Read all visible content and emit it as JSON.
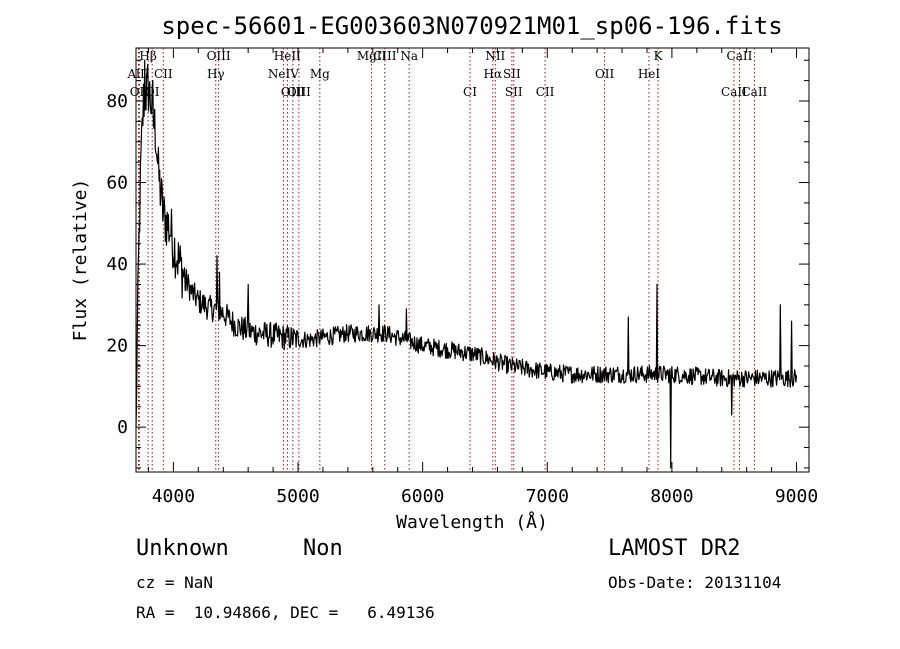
{
  "chart_data": {
    "type": "line",
    "title": "spec-56601-EG003603N070921M01_sp06-196.fits",
    "xlabel": "Wavelength (Å)",
    "ylabel": "Flux (relative)",
    "xlim": [
      3700,
      9100
    ],
    "ylim": [
      -11,
      93
    ],
    "xticks": [
      4000,
      5000,
      6000,
      7000,
      8000,
      9000
    ],
    "yticks": [
      0,
      20,
      40,
      60,
      80
    ],
    "x_tick_labels": [
      "4000",
      "5000",
      "6000",
      "7000",
      "8000",
      "9000"
    ],
    "y_tick_labels": [
      "0",
      "20",
      "40",
      "60",
      "80"
    ],
    "line_color": "#000000",
    "marker_color": "#8b1a1a",
    "spectrum_anchors": [
      [
        3700,
        0
      ],
      [
        3720,
        40
      ],
      [
        3740,
        65
      ],
      [
        3760,
        80
      ],
      [
        3780,
        82
      ],
      [
        3800,
        83
      ],
      [
        3820,
        80
      ],
      [
        3840,
        75
      ],
      [
        3860,
        72
      ],
      [
        3880,
        62
      ],
      [
        3900,
        57
      ],
      [
        3920,
        52
      ],
      [
        3950,
        50
      ],
      [
        3980,
        48
      ],
      [
        4000,
        45
      ],
      [
        4050,
        40
      ],
      [
        4100,
        36
      ],
      [
        4150,
        33
      ],
      [
        4200,
        31
      ],
      [
        4250,
        30
      ],
      [
        4300,
        29
      ],
      [
        4340,
        29
      ],
      [
        4400,
        28
      ],
      [
        4500,
        25
      ],
      [
        4600,
        23.5
      ],
      [
        4700,
        23
      ],
      [
        4800,
        22.5
      ],
      [
        4900,
        22
      ],
      [
        5000,
        21.5
      ],
      [
        5100,
        21.5
      ],
      [
        5200,
        22
      ],
      [
        5300,
        22.5
      ],
      [
        5400,
        23
      ],
      [
        5500,
        23
      ],
      [
        5600,
        23
      ],
      [
        5700,
        23
      ],
      [
        5800,
        22
      ],
      [
        5900,
        21
      ],
      [
        6000,
        20
      ],
      [
        6100,
        19.5
      ],
      [
        6200,
        19
      ],
      [
        6300,
        18.5
      ],
      [
        6400,
        18
      ],
      [
        6500,
        17
      ],
      [
        6600,
        16
      ],
      [
        6700,
        15
      ],
      [
        6800,
        14.5
      ],
      [
        6900,
        14
      ],
      [
        7000,
        13.5
      ],
      [
        7200,
        13
      ],
      [
        7400,
        13
      ],
      [
        7600,
        13
      ],
      [
        7800,
        13
      ],
      [
        8000,
        13
      ],
      [
        8200,
        12.5
      ],
      [
        8400,
        12
      ],
      [
        8600,
        12
      ],
      [
        8800,
        12
      ],
      [
        9000,
        12
      ]
    ],
    "spikes": [
      {
        "x": 3770,
        "y": 90
      },
      {
        "x": 3795,
        "y": 89
      },
      {
        "x": 3835,
        "y": 86
      },
      {
        "x": 3835,
        "y": 85
      },
      {
        "x": 4350,
        "y": 42
      },
      {
        "x": 4370,
        "y": 38
      },
      {
        "x": 5870,
        "y": 29
      },
      {
        "x": 7650,
        "y": 27
      },
      {
        "x": 7880,
        "y": 35
      },
      {
        "x": 7990,
        "y": -10
      },
      {
        "x": 8480,
        "y": 3
      },
      {
        "x": 8870,
        "y": 30
      },
      {
        "x": 8960,
        "y": 26
      },
      {
        "x": 4600,
        "y": 35
      },
      {
        "x": 5650,
        "y": 30
      }
    ],
    "lines": [
      {
        "name": "AlII",
        "x": 3720,
        "row": 2
      },
      {
        "name": "Hβ",
        "x": 3797,
        "row": 0
      },
      {
        "name": "OII",
        "x": 3727,
        "row": 3
      },
      {
        "name": "OI",
        "x": 3830,
        "row": 3
      },
      {
        "name": "CII",
        "x": 3919,
        "row": 2
      },
      {
        "name": "OIII",
        "x": 4363,
        "row": 0
      },
      {
        "name": "Hγ",
        "x": 4340,
        "row": 2
      },
      {
        "name": "HeII",
        "x": 4914,
        "row": 0
      },
      {
        "name": "NeIV",
        "x": 4883,
        "row": 2
      },
      {
        "name": "OIII",
        "x": 5007,
        "row": 3
      },
      {
        "name": "OIII",
        "x": 4959,
        "row": 3
      },
      {
        "name": "Mg",
        "x": 5175,
        "row": 2
      },
      {
        "name": "MgII",
        "x": 5590,
        "row": 0
      },
      {
        "name": "CIII",
        "x": 5696,
        "row": 0
      },
      {
        "name": "Na",
        "x": 5892,
        "row": 0
      },
      {
        "name": "CI",
        "x": 6380,
        "row": 3
      },
      {
        "name": "NII",
        "x": 6583,
        "row": 0
      },
      {
        "name": "Hα",
        "x": 6563,
        "row": 2
      },
      {
        "name": "SII",
        "x": 6716,
        "row": 2
      },
      {
        "name": "SII",
        "x": 6731,
        "row": 3
      },
      {
        "name": "CII",
        "x": 6982,
        "row": 3
      },
      {
        "name": "OII",
        "x": 7460,
        "row": 2
      },
      {
        "name": "K",
        "x": 7889,
        "row": 0
      },
      {
        "name": "HeI",
        "x": 7816,
        "row": 2
      },
      {
        "name": "CaII",
        "x": 8542,
        "row": 0
      },
      {
        "name": "CaII",
        "x": 8498,
        "row": 3
      },
      {
        "name": "CaII",
        "x": 8662,
        "row": 3
      }
    ]
  },
  "info": {
    "class": "Unknown",
    "subclass": "Non",
    "survey": "LAMOST DR2",
    "cz": "cz = NaN",
    "obs_date": "Obs-Date: 20131104",
    "coords": "RA =  10.94866, DEC =   6.49136"
  }
}
